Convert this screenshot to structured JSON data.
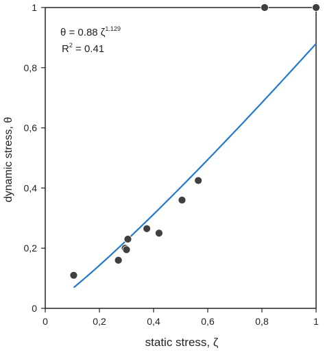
{
  "chart_data": {
    "type": "scatter",
    "xlabel": "static stress, ζ",
    "ylabel": "dynamic stress, θ",
    "xlim": [
      0,
      1
    ],
    "ylim": [
      0,
      1
    ],
    "x_ticks": [
      "0",
      "0,2",
      "0,4",
      "0,6",
      "0,8",
      "1"
    ],
    "y_ticks": [
      "0",
      "0,2",
      "0,4",
      "0,6",
      "0,8",
      "1"
    ],
    "grid": false,
    "annotations": {
      "equation_main": "θ = 0.88 ζ",
      "equation_exp": "1.129",
      "r2_prefix": "R",
      "r2_sup": "2",
      "r2_value": " = 0.41"
    },
    "points": [
      {
        "x": 0.105,
        "y": 0.11
      },
      {
        "x": 0.27,
        "y": 0.16
      },
      {
        "x": 0.295,
        "y": 0.2
      },
      {
        "x": 0.3,
        "y": 0.195
      },
      {
        "x": 0.305,
        "y": 0.23
      },
      {
        "x": 0.375,
        "y": 0.265
      },
      {
        "x": 0.42,
        "y": 0.25
      },
      {
        "x": 0.505,
        "y": 0.36
      },
      {
        "x": 0.565,
        "y": 0.425
      },
      {
        "x": 0.81,
        "y": 1.0
      },
      {
        "x": 1.0,
        "y": 1.0
      }
    ],
    "fit": {
      "coefficient": 0.88,
      "exponent": 1.129,
      "x_range": [
        0.105,
        1.0
      ]
    },
    "colors": {
      "points": "#3f3f3f",
      "fit_line": "#1f78d1",
      "axis": "#222222"
    }
  }
}
